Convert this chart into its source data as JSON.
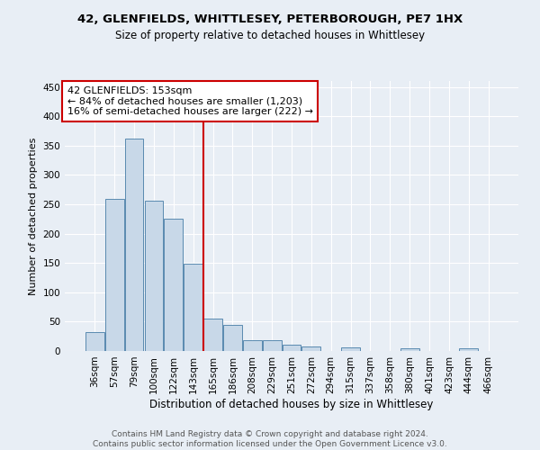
{
  "title": "42, GLENFIELDS, WHITTLESEY, PETERBOROUGH, PE7 1HX",
  "subtitle": "Size of property relative to detached houses in Whittlesey",
  "xlabel": "Distribution of detached houses by size in Whittlesey",
  "ylabel": "Number of detached properties",
  "categories": [
    "36sqm",
    "57sqm",
    "79sqm",
    "100sqm",
    "122sqm",
    "143sqm",
    "165sqm",
    "186sqm",
    "208sqm",
    "229sqm",
    "251sqm",
    "272sqm",
    "294sqm",
    "315sqm",
    "337sqm",
    "358sqm",
    "380sqm",
    "401sqm",
    "423sqm",
    "444sqm",
    "466sqm"
  ],
  "values": [
    32,
    259,
    362,
    256,
    225,
    148,
    55,
    45,
    19,
    19,
    10,
    8,
    0,
    6,
    0,
    0,
    4,
    0,
    0,
    4,
    0
  ],
  "bar_color": "#c8d8e8",
  "bar_edge_color": "#5a8ab0",
  "vline_x_idx": 5.5,
  "vline_color": "#cc0000",
  "annotation_line1": "42 GLENFIELDS: 153sqm",
  "annotation_line2": "← 84% of detached houses are smaller (1,203)",
  "annotation_line3": "16% of semi-detached houses are larger (222) →",
  "annotation_box_color": "#ffffff",
  "annotation_box_edge_color": "#cc0000",
  "ylim": [
    0,
    460
  ],
  "yticks": [
    0,
    50,
    100,
    150,
    200,
    250,
    300,
    350,
    400,
    450
  ],
  "bg_color": "#e8eef5",
  "grid_color": "#ffffff",
  "footer_line1": "Contains HM Land Registry data © Crown copyright and database right 2024.",
  "footer_line2": "Contains public sector information licensed under the Open Government Licence v3.0.",
  "title_fontsize": 9.5,
  "subtitle_fontsize": 8.5,
  "ylabel_fontsize": 8,
  "xlabel_fontsize": 8.5,
  "tick_fontsize": 7.5,
  "footer_fontsize": 6.5,
  "annotation_fontsize": 8
}
